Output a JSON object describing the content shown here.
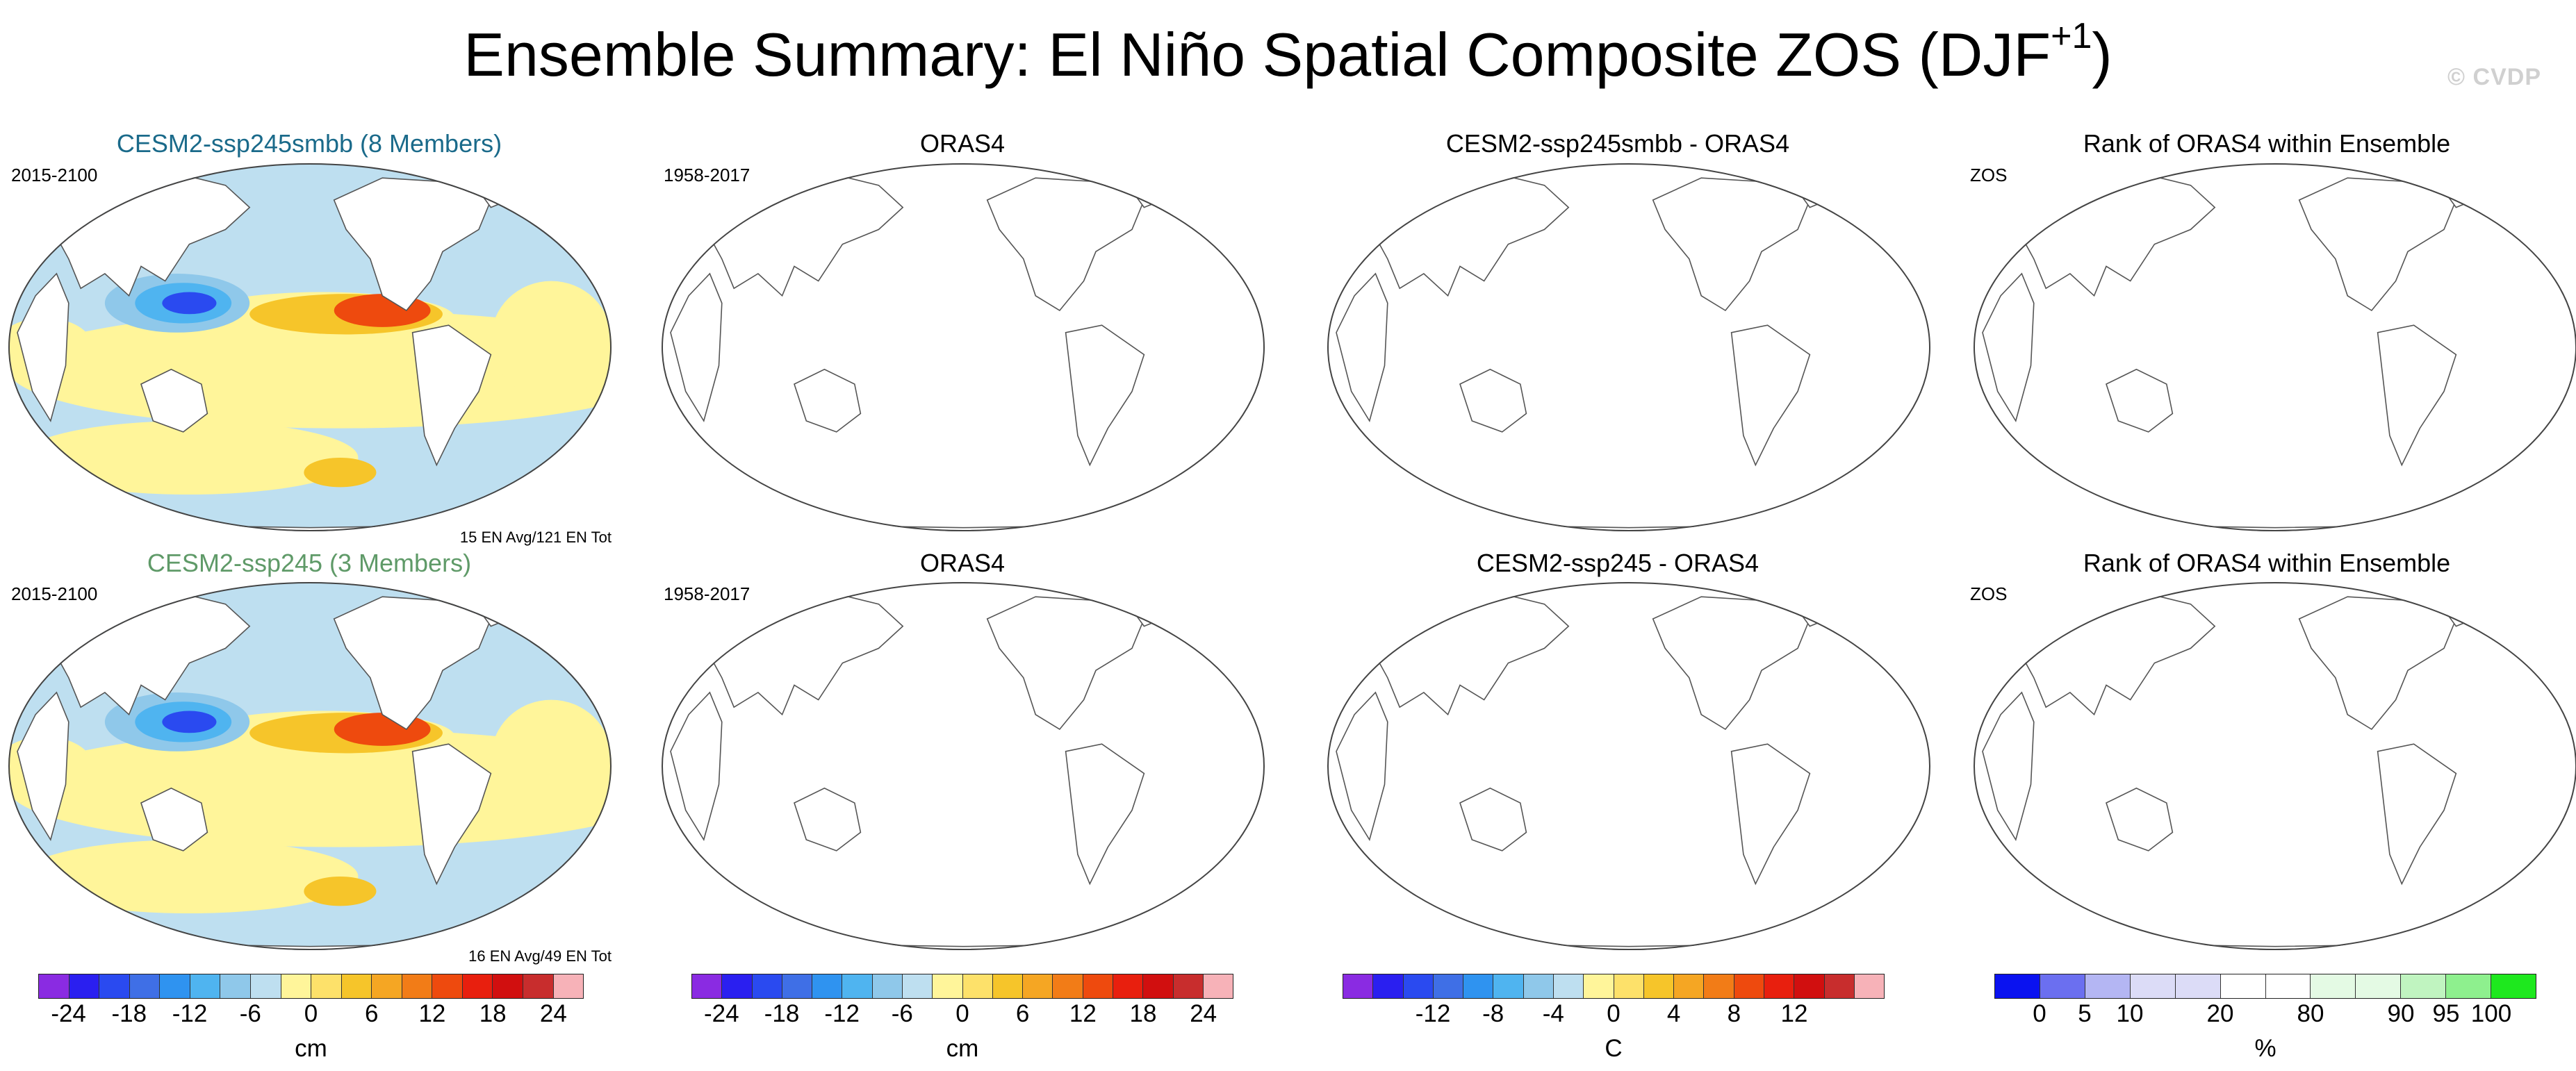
{
  "page": {
    "title_main": "Ensemble Summary: El Niño Spatial Composite ZOS (DJF",
    "title_sup": "+1",
    "title_close": ")",
    "copyright": "© CVDP"
  },
  "rows": [
    {
      "panels": [
        {
          "title": "CESM2-ssp245smbb (8 Members)",
          "title_color": "#1a6a8a",
          "left_label": "2015-2100",
          "footer": "15 EN Avg/121 EN Tot",
          "filled": true
        },
        {
          "title": "ORAS4",
          "title_color": "#000000",
          "left_label": "1958-2017",
          "footer": "",
          "filled": false
        },
        {
          "title": "CESM2-ssp245smbb - ORAS4",
          "title_color": "#000000",
          "left_label": "",
          "footer": "",
          "filled": false
        },
        {
          "title": "Rank of ORAS4 within Ensemble",
          "title_color": "#000000",
          "left_label": "ZOS",
          "footer": "",
          "filled": false
        }
      ]
    },
    {
      "panels": [
        {
          "title": "CESM2-ssp245 (3 Members)",
          "title_color": "#5f9a68",
          "left_label": "2015-2100",
          "footer": "16 EN Avg/49 EN Tot",
          "filled": true
        },
        {
          "title": "ORAS4",
          "title_color": "#000000",
          "left_label": "1958-2017",
          "footer": "",
          "filled": false
        },
        {
          "title": "CESM2-ssp245 - ORAS4",
          "title_color": "#000000",
          "left_label": "",
          "footer": "",
          "filled": false
        },
        {
          "title": "Rank of ORAS4 within Ensemble",
          "title_color": "#000000",
          "left_label": "ZOS",
          "footer": "",
          "filled": false
        }
      ]
    }
  ],
  "colorbars": [
    {
      "unit": "cm",
      "colors": [
        "#8a2be2",
        "#2a1ff0",
        "#2a4af0",
        "#3f6fe6",
        "#2f93f0",
        "#4fb4f0",
        "#8fc8ea",
        "#bedff0",
        "#fff59a",
        "#fde16a",
        "#f6c52a",
        "#f5a623",
        "#f27c17",
        "#ee4a0e",
        "#e81f0e",
        "#d10f0f",
        "#c82d2d",
        "#f7b2b8"
      ],
      "ticks": [
        "-24",
        "-18",
        "-12",
        "-6",
        "0",
        "6",
        "12",
        "18",
        "24"
      ],
      "tick_boundaries": [
        1,
        3,
        5,
        7,
        9,
        11,
        13,
        15,
        17
      ]
    },
    {
      "unit": "cm",
      "colors": [
        "#8a2be2",
        "#2a1ff0",
        "#2a4af0",
        "#3f6fe6",
        "#2f93f0",
        "#4fb4f0",
        "#8fc8ea",
        "#bedff0",
        "#fff59a",
        "#fde16a",
        "#f6c52a",
        "#f5a623",
        "#f27c17",
        "#ee4a0e",
        "#e81f0e",
        "#d10f0f",
        "#c82d2d",
        "#f7b2b8"
      ],
      "ticks": [
        "-24",
        "-18",
        "-12",
        "-6",
        "0",
        "6",
        "12",
        "18",
        "24"
      ],
      "tick_boundaries": [
        1,
        3,
        5,
        7,
        9,
        11,
        13,
        15,
        17
      ]
    },
    {
      "unit": "C",
      "colors": [
        "#8a2be2",
        "#2a1ff0",
        "#2a4af0",
        "#3f6fe6",
        "#2f93f0",
        "#4fb4f0",
        "#8fc8ea",
        "#bedff0",
        "#fff59a",
        "#fde16a",
        "#f6c52a",
        "#f5a623",
        "#f27c17",
        "#ee4a0e",
        "#e81f0e",
        "#d10f0f",
        "#c82d2d",
        "#f7b2b8"
      ],
      "ticks": [
        "-12",
        "-8",
        "-4",
        "0",
        "4",
        "8",
        "12"
      ],
      "tick_boundaries": [
        3,
        5,
        7,
        9,
        11,
        13,
        15
      ]
    },
    {
      "unit": "%",
      "colors": [
        "#0a12f0",
        "#6b6ff0",
        "#b4b6f3",
        "#dcdcf7",
        "#dcdcf7",
        "#ffffff",
        "#ffffff",
        "#e4fae4",
        "#e4fae4",
        "#c0f4c0",
        "#8ef08e",
        "#1ee81e"
      ],
      "ticks": [
        "0",
        "5",
        "10",
        "20",
        "80",
        "90",
        "95",
        "100"
      ],
      "tick_boundaries": [
        1,
        2,
        3,
        5,
        7,
        9,
        10,
        11
      ]
    }
  ],
  "legend_colors": {
    "ocean_light": "#bedff0",
    "ocean_blue_mid": "#8fc8ea",
    "ocean_blue": "#4fb4f0",
    "ocean_blue_dark": "#2a4af0",
    "yellow": "#fff59a",
    "orange": "#f6c52a",
    "red": "#ee4a0e"
  }
}
